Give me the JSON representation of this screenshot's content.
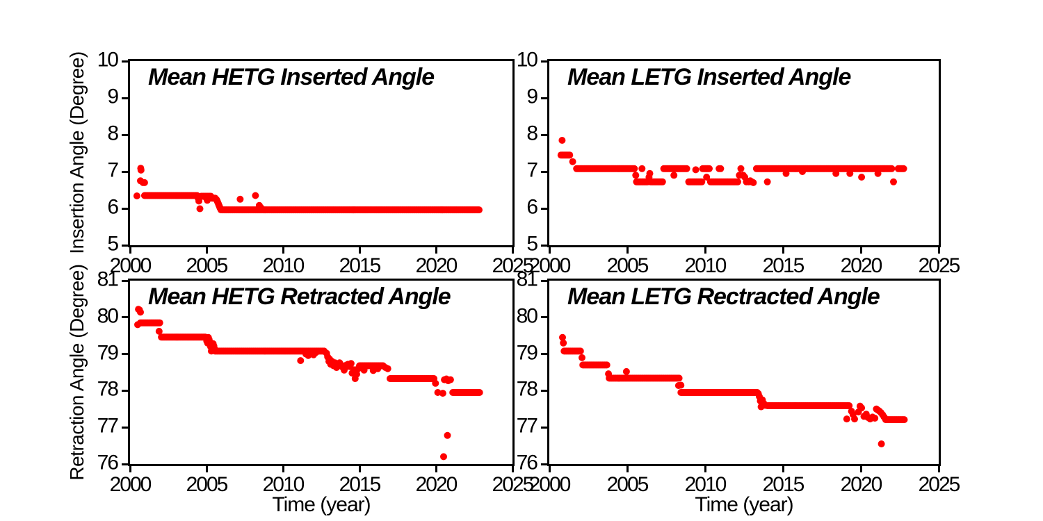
{
  "figure": {
    "background_color": "#ffffff",
    "frame_color": "#000000",
    "marker_color": "#ff0000"
  },
  "chart_data": [
    {
      "type": "scatter",
      "panel": "top-left",
      "title": "Mean HETG Inserted Angle",
      "xlabel": "",
      "ylabel": "Insertion Angle (Degree)",
      "xlim": [
        2000,
        2025
      ],
      "ylim": [
        5,
        10
      ],
      "xticks": [
        2000,
        2005,
        2010,
        2015,
        2020,
        2025
      ],
      "yticks": [
        5,
        6,
        7,
        8,
        9,
        10
      ],
      "grid": false,
      "series": [
        {
          "name": "HETG inserted angle",
          "marker": "circle",
          "color": "#ff0000",
          "dense_runs": [
            {
              "x0": 2000.95,
              "x1": 2004.4,
              "y": 6.35
            },
            {
              "x0": 2004.65,
              "x1": 2005.3,
              "y": 6.33
            },
            {
              "x0": 2005.35,
              "x1": 2005.6,
              "y": 6.28
            },
            {
              "x0": 2005.95,
              "x1": 2022.85,
              "y": 5.96
            }
          ],
          "points": [
            [
              2000.45,
              6.34
            ],
            [
              2000.68,
              6.75
            ],
            [
              2000.7,
              7.09
            ],
            [
              2000.72,
              7.04
            ],
            [
              2000.85,
              6.7
            ],
            [
              2000.95,
              6.7
            ],
            [
              2004.45,
              6.28
            ],
            [
              2004.5,
              6.2
            ],
            [
              2004.57,
              5.99
            ],
            [
              2005.0,
              6.27
            ],
            [
              2005.05,
              6.22
            ],
            [
              2005.65,
              6.24
            ],
            [
              2005.7,
              6.2
            ],
            [
              2005.74,
              6.16
            ],
            [
              2005.78,
              6.12
            ],
            [
              2005.82,
              6.08
            ],
            [
              2005.86,
              6.04
            ],
            [
              2005.9,
              6.0
            ],
            [
              2007.2,
              6.25
            ],
            [
              2008.2,
              6.35
            ],
            [
              2008.45,
              6.08
            ],
            [
              2008.55,
              6.02
            ]
          ]
        }
      ]
    },
    {
      "type": "scatter",
      "panel": "top-right",
      "title": "Mean LETG Inserted Angle",
      "xlabel": "",
      "ylabel": "",
      "xlim": [
        2000,
        2025
      ],
      "ylim": [
        5,
        10
      ],
      "xticks": [
        2000,
        2005,
        2010,
        2015,
        2020,
        2025
      ],
      "yticks": [
        5,
        6,
        7,
        8,
        9,
        10
      ],
      "grid": false,
      "series": [
        {
          "name": "LETG inserted angle",
          "marker": "circle",
          "color": "#ff0000",
          "dense_runs": [
            {
              "x0": 2000.75,
              "x1": 2001.35,
              "y": 7.45
            },
            {
              "x0": 2001.75,
              "x1": 2005.5,
              "y": 7.08
            },
            {
              "x0": 2005.6,
              "x1": 2006.35,
              "y": 6.72
            },
            {
              "x0": 2006.5,
              "x1": 2007.3,
              "y": 6.72
            },
            {
              "x0": 2007.35,
              "x1": 2008.85,
              "y": 7.08
            },
            {
              "x0": 2008.95,
              "x1": 2009.8,
              "y": 6.72
            },
            {
              "x0": 2009.85,
              "x1": 2010.3,
              "y": 7.08
            },
            {
              "x0": 2010.35,
              "x1": 2012.1,
              "y": 6.72
            },
            {
              "x0": 2013.3,
              "x1": 2022.0,
              "y": 7.08
            },
            {
              "x0": 2022.4,
              "x1": 2022.8,
              "y": 7.08
            }
          ],
          "points": [
            [
              2000.82,
              7.85
            ],
            [
              2001.5,
              7.27
            ],
            [
              2005.55,
              6.9
            ],
            [
              2005.95,
              7.08
            ],
            [
              2006.4,
              6.85
            ],
            [
              2006.45,
              6.95
            ],
            [
              2008.0,
              6.9
            ],
            [
              2009.4,
              7.05
            ],
            [
              2010.1,
              6.85
            ],
            [
              2010.9,
              7.08
            ],
            [
              2011.0,
              7.08
            ],
            [
              2012.2,
              6.9
            ],
            [
              2012.3,
              7.08
            ],
            [
              2012.45,
              6.9
            ],
            [
              2012.55,
              6.85
            ],
            [
              2012.65,
              6.72
            ],
            [
              2012.8,
              6.72
            ],
            [
              2012.9,
              6.75
            ],
            [
              2013.0,
              6.72
            ],
            [
              2013.1,
              6.7
            ],
            [
              2014.0,
              6.72
            ],
            [
              2015.2,
              6.95
            ],
            [
              2016.25,
              7.0
            ],
            [
              2018.4,
              6.95
            ],
            [
              2019.3,
              6.95
            ],
            [
              2020.05,
              6.85
            ],
            [
              2021.1,
              6.95
            ],
            [
              2022.1,
              6.72
            ]
          ]
        }
      ]
    },
    {
      "type": "scatter",
      "panel": "bottom-left",
      "title": "Mean HETG Retracted Angle",
      "xlabel": "Time (year)",
      "ylabel": "Retraction Angle (Degree)",
      "xlim": [
        2000,
        2025
      ],
      "ylim": [
        76,
        81
      ],
      "xticks": [
        2000,
        2005,
        2010,
        2015,
        2020,
        2025
      ],
      "yticks": [
        76,
        77,
        78,
        79,
        80,
        81
      ],
      "grid": false,
      "series": [
        {
          "name": "HETG retracted angle",
          "marker": "circle",
          "color": "#ff0000",
          "dense_runs": [
            {
              "x0": 2000.68,
              "x1": 2001.95,
              "y": 79.85
            },
            {
              "x0": 2002.05,
              "x1": 2004.92,
              "y": 79.46
            },
            {
              "x0": 2005.55,
              "x1": 2012.75,
              "y": 79.08
            },
            {
              "x0": 2015.0,
              "x1": 2016.55,
              "y": 78.68
            },
            {
              "x0": 2017.0,
              "x1": 2019.9,
              "y": 78.33
            },
            {
              "x0": 2021.1,
              "x1": 2022.85,
              "y": 77.95
            }
          ],
          "points": [
            [
              2000.5,
              79.8
            ],
            [
              2000.55,
              80.22
            ],
            [
              2000.62,
              80.2
            ],
            [
              2000.68,
              80.14
            ],
            [
              2001.9,
              79.62
            ],
            [
              2004.97,
              79.42
            ],
            [
              2005.02,
              79.35
            ],
            [
              2005.07,
              79.3
            ],
            [
              2005.12,
              79.45
            ],
            [
              2005.17,
              79.4
            ],
            [
              2005.22,
              79.33
            ],
            [
              2005.27,
              79.2
            ],
            [
              2005.32,
              79.08
            ],
            [
              2005.38,
              79.12
            ],
            [
              2005.43,
              79.28
            ],
            [
              2005.48,
              79.22
            ],
            [
              2005.52,
              79.15
            ],
            [
              2011.15,
              78.82
            ],
            [
              2011.5,
              79.0
            ],
            [
              2011.65,
              78.96
            ],
            [
              2011.8,
              79.02
            ],
            [
              2012.0,
              78.98
            ],
            [
              2012.15,
              79.04
            ],
            [
              2012.85,
              79.02
            ],
            [
              2012.92,
              78.92
            ],
            [
              2013.0,
              78.8
            ],
            [
              2013.05,
              78.86
            ],
            [
              2013.12,
              78.72
            ],
            [
              2013.2,
              78.8
            ],
            [
              2013.3,
              78.68
            ],
            [
              2013.4,
              78.76
            ],
            [
              2013.5,
              78.63
            ],
            [
              2013.6,
              78.72
            ],
            [
              2013.7,
              78.76
            ],
            [
              2013.8,
              78.7
            ],
            [
              2013.9,
              78.64
            ],
            [
              2014.0,
              78.56
            ],
            [
              2014.07,
              78.63
            ],
            [
              2014.15,
              78.7
            ],
            [
              2014.25,
              78.72
            ],
            [
              2014.35,
              78.66
            ],
            [
              2014.45,
              78.74
            ],
            [
              2014.52,
              78.48
            ],
            [
              2014.62,
              78.57
            ],
            [
              2014.72,
              78.33
            ],
            [
              2014.82,
              78.45
            ],
            [
              2014.92,
              78.6
            ],
            [
              2015.3,
              78.56
            ],
            [
              2015.9,
              78.55
            ],
            [
              2016.2,
              78.6
            ],
            [
              2016.7,
              78.63
            ],
            [
              2016.85,
              78.6
            ],
            [
              2019.97,
              78.2
            ],
            [
              2020.12,
              77.95
            ],
            [
              2020.45,
              77.93
            ],
            [
              2020.55,
              78.3
            ],
            [
              2020.68,
              78.32
            ],
            [
              2020.8,
              78.27
            ],
            [
              2020.95,
              78.3
            ],
            [
              2020.5,
              76.2
            ],
            [
              2020.75,
              76.78
            ]
          ]
        }
      ]
    },
    {
      "type": "scatter",
      "panel": "bottom-right",
      "title": "Mean LETG Rectracted Angle",
      "xlabel": "Time (year)",
      "ylabel": "",
      "xlim": [
        2000,
        2025
      ],
      "ylim": [
        76,
        81
      ],
      "xticks": [
        2000,
        2005,
        2010,
        2015,
        2020,
        2025
      ],
      "yticks": [
        76,
        77,
        78,
        79,
        80,
        81
      ],
      "grid": false,
      "series": [
        {
          "name": "LETG retracted angle",
          "marker": "circle",
          "color": "#ff0000",
          "dense_runs": [
            {
              "x0": 2000.95,
              "x1": 2002.05,
              "y": 79.08
            },
            {
              "x0": 2002.15,
              "x1": 2003.75,
              "y": 78.7
            },
            {
              "x0": 2003.85,
              "x1": 2008.35,
              "y": 78.34
            },
            {
              "x0": 2008.45,
              "x1": 2013.35,
              "y": 77.95
            },
            {
              "x0": 2014.0,
              "x1": 2019.3,
              "y": 77.59
            },
            {
              "x0": 2021.6,
              "x1": 2022.85,
              "y": 77.21
            }
          ],
          "points": [
            [
              2000.85,
              79.45
            ],
            [
              2000.9,
              79.3
            ],
            [
              2002.1,
              78.9
            ],
            [
              2003.8,
              78.46
            ],
            [
              2004.95,
              78.52
            ],
            [
              2008.3,
              78.14
            ],
            [
              2008.45,
              78.15
            ],
            [
              2013.42,
              77.92
            ],
            [
              2013.48,
              77.84
            ],
            [
              2013.55,
              77.72
            ],
            [
              2013.6,
              77.56
            ],
            [
              2013.68,
              77.75
            ],
            [
              2013.76,
              77.66
            ],
            [
              2013.85,
              77.6
            ],
            [
              2019.1,
              77.23
            ],
            [
              2019.4,
              77.44
            ],
            [
              2019.5,
              77.35
            ],
            [
              2019.6,
              77.23
            ],
            [
              2019.85,
              77.42
            ],
            [
              2019.95,
              77.58
            ],
            [
              2020.05,
              77.53
            ],
            [
              2020.2,
              77.3
            ],
            [
              2020.35,
              77.36
            ],
            [
              2020.45,
              77.27
            ],
            [
              2020.6,
              77.23
            ],
            [
              2020.75,
              77.28
            ],
            [
              2020.9,
              77.25
            ],
            [
              2021.0,
              77.5
            ],
            [
              2021.1,
              77.47
            ],
            [
              2021.2,
              77.44
            ],
            [
              2021.3,
              77.4
            ],
            [
              2021.4,
              77.34
            ],
            [
              2021.5,
              77.28
            ],
            [
              2021.32,
              76.55
            ]
          ]
        }
      ]
    }
  ]
}
